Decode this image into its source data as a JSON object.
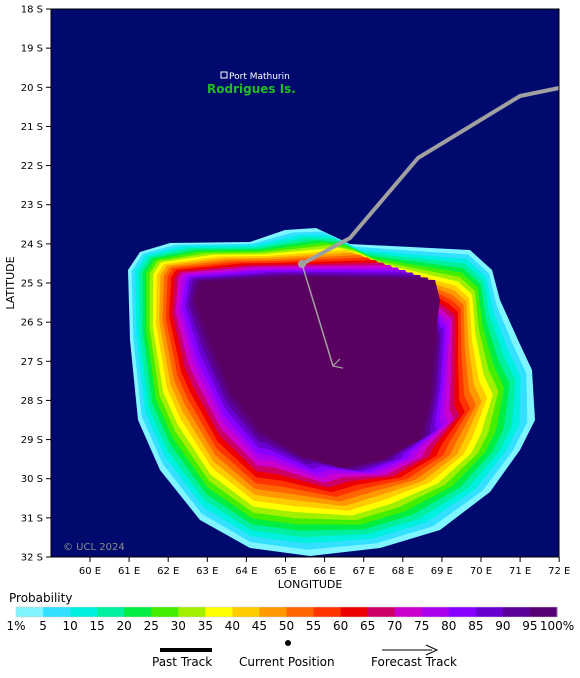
{
  "map": {
    "place_name": "Port Mathurin",
    "island_name": "Rodrigues Is.",
    "copyright": "© UCL 2024",
    "x_axis_title": "LONGITUDE",
    "y_axis_title": "LATITUDE",
    "lat_labels": [
      "18 S",
      "19 S",
      "20 S",
      "21 S",
      "22 S",
      "23 S",
      "24 S",
      "25 S",
      "26 S",
      "27 S",
      "28 S",
      "29 S",
      "30 S",
      "31 S",
      "32 S"
    ],
    "lon_labels": [
      "60 E",
      "61 E",
      "62 E",
      "63 E",
      "64 E",
      "65 E",
      "66 E",
      "67 E",
      "68 E",
      "69 E",
      "70 E",
      "71 E",
      "72 E"
    ],
    "colors": {
      "ocean": "#000a6e",
      "island_text": "#22bb22",
      "track_past": "#a0a0a0",
      "track_forecast": "#a0a0a0"
    }
  },
  "legend": {
    "title": "Probability",
    "labels": [
      "1%",
      "5",
      "10",
      "15",
      "20",
      "25",
      "30",
      "35",
      "40",
      "45",
      "50",
      "55",
      "60",
      "65",
      "70",
      "75",
      "80",
      "85",
      "90",
      "95",
      "100%"
    ],
    "colors": [
      "#7ff5ff",
      "#33e0ff",
      "#00f0e0",
      "#00f0a0",
      "#00ee44",
      "#44ee00",
      "#a0f000",
      "#ffff00",
      "#ffcc00",
      "#ff9900",
      "#ff6600",
      "#ff3300",
      "#ee0000",
      "#cc0066",
      "#cc00cc",
      "#aa00ee",
      "#8800ff",
      "#6a00d0",
      "#5a0099",
      "#5a0075",
      "#5a0060"
    ]
  },
  "key": {
    "past_track": "Past Track",
    "current_position": "Current Position",
    "forecast_track": "Forecast Track"
  }
}
